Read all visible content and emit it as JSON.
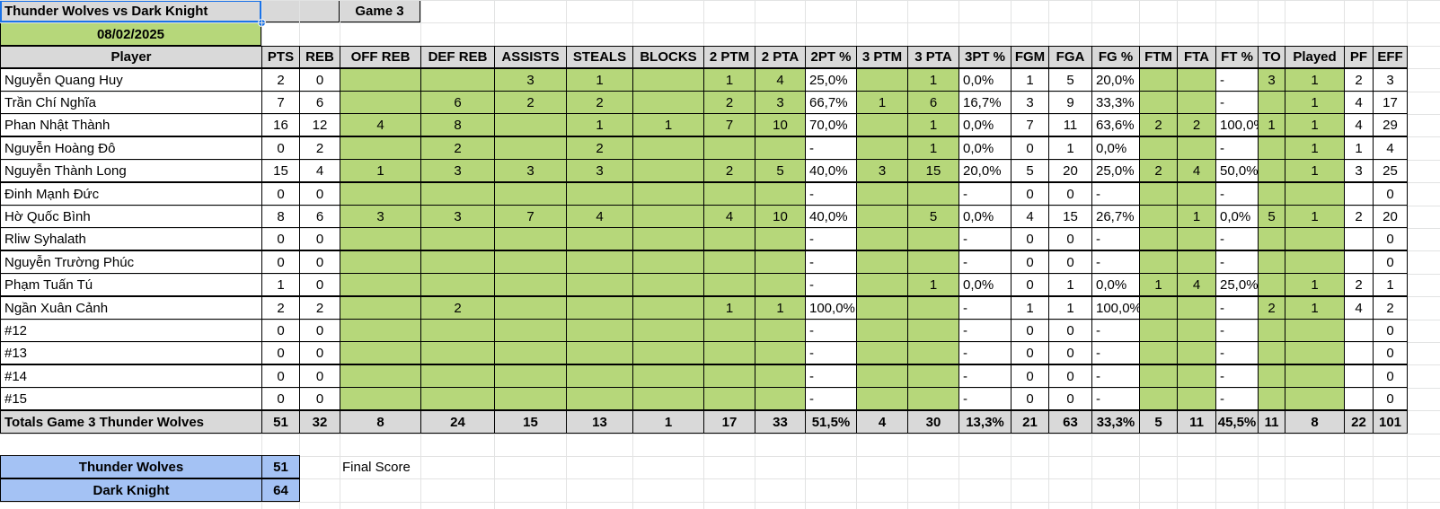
{
  "title": "Thunder Wolves vs Dark Knight",
  "game_label": "Game 3",
  "date": "08/02/2025",
  "headers": [
    "Player",
    "PTS",
    "REB",
    "OFF REB",
    "DEF REB",
    "ASSISTS",
    "STEALS",
    "BLOCKS",
    "2 PTM",
    "2 PTA",
    "2PT %",
    "3 PTM",
    "3 PTA",
    "3PT %",
    "FGM",
    "FGA",
    "FG %",
    "FTM",
    "FTA",
    "FT %",
    "TO",
    "Played",
    "PF",
    "EFF"
  ],
  "rows": [
    [
      "Nguyễn Quang Huy",
      "2",
      "0",
      "",
      "",
      "3",
      "1",
      "",
      "1",
      "4",
      "25,0%",
      "",
      "1",
      "0,0%",
      "1",
      "5",
      "20,0%",
      "",
      "",
      "-",
      "3",
      "1",
      "2",
      "3"
    ],
    [
      "Trần Chí Nghĩa",
      "7",
      "6",
      "",
      "6",
      "2",
      "2",
      "",
      "2",
      "3",
      "66,7%",
      "1",
      "6",
      "16,7%",
      "3",
      "9",
      "33,3%",
      "",
      "",
      "-",
      "",
      "1",
      "4",
      "17"
    ],
    [
      "Phan Nhật Thành",
      "16",
      "12",
      "4",
      "8",
      "",
      "1",
      "1",
      "7",
      "10",
      "70,0%",
      "",
      "1",
      "0,0%",
      "7",
      "11",
      "63,6%",
      "2",
      "2",
      "100,0%",
      "1",
      "1",
      "4",
      "29"
    ],
    [
      "Nguyễn Hoàng Đô",
      "0",
      "2",
      "",
      "2",
      "",
      "2",
      "",
      "",
      "",
      "-",
      "",
      "1",
      "0,0%",
      "0",
      "1",
      "0,0%",
      "",
      "",
      "-",
      "",
      "1",
      "1",
      "4"
    ],
    [
      "Nguyễn Thành Long",
      "15",
      "4",
      "1",
      "3",
      "3",
      "3",
      "",
      "2",
      "5",
      "40,0%",
      "3",
      "15",
      "20,0%",
      "5",
      "20",
      "25,0%",
      "2",
      "4",
      "50,0%",
      "",
      "1",
      "3",
      "25"
    ],
    [
      "Đinh Mạnh Đức",
      "0",
      "0",
      "",
      "",
      "",
      "",
      "",
      "",
      "",
      "-",
      "",
      "",
      "-",
      "0",
      "0",
      "-",
      "",
      "",
      "-",
      "",
      "",
      "",
      "0"
    ],
    [
      "Hờ Quốc Bình",
      "8",
      "6",
      "3",
      "3",
      "7",
      "4",
      "",
      "4",
      "10",
      "40,0%",
      "",
      "5",
      "0,0%",
      "4",
      "15",
      "26,7%",
      "",
      "1",
      "0,0%",
      "5",
      "1",
      "2",
      "20"
    ],
    [
      "Rliw Syhalath",
      "0",
      "0",
      "",
      "",
      "",
      "",
      "",
      "",
      "",
      "-",
      "",
      "",
      "-",
      "0",
      "0",
      "-",
      "",
      "",
      "-",
      "",
      "",
      "",
      "0"
    ],
    [
      "Nguyễn Trường Phúc",
      "0",
      "0",
      "",
      "",
      "",
      "",
      "",
      "",
      "",
      "-",
      "",
      "",
      "-",
      "0",
      "0",
      "-",
      "",
      "",
      "-",
      "",
      "",
      "",
      "0"
    ],
    [
      "Phạm Tuấn Tú",
      "1",
      "0",
      "",
      "",
      "",
      "",
      "",
      "",
      "",
      "-",
      "",
      "1",
      "0,0%",
      "0",
      "1",
      "0,0%",
      "1",
      "4",
      "25,0%",
      "",
      "1",
      "2",
      "1"
    ],
    [
      "Ngần Xuân Cảnh",
      "2",
      "2",
      "",
      "2",
      "",
      "",
      "",
      "1",
      "1",
      "100,0%",
      "",
      "",
      "-",
      "1",
      "1",
      "100,0%",
      "",
      "",
      "-",
      "2",
      "1",
      "4",
      "2"
    ],
    [
      "#12",
      "0",
      "0",
      "",
      "",
      "",
      "",
      "",
      "",
      "",
      "-",
      "",
      "",
      "-",
      "0",
      "0",
      "-",
      "",
      "",
      "-",
      "",
      "",
      "",
      "0"
    ],
    [
      "#13",
      "0",
      "0",
      "",
      "",
      "",
      "",
      "",
      "",
      "",
      "-",
      "",
      "",
      "-",
      "0",
      "0",
      "-",
      "",
      "",
      "-",
      "",
      "",
      "",
      "0"
    ],
    [
      "#14",
      "0",
      "0",
      "",
      "",
      "",
      "",
      "",
      "",
      "",
      "-",
      "",
      "",
      "-",
      "0",
      "0",
      "-",
      "",
      "",
      "-",
      "",
      "",
      "",
      "0"
    ],
    [
      "#15",
      "0",
      "0",
      "",
      "",
      "",
      "",
      "",
      "",
      "",
      "-",
      "",
      "",
      "-",
      "0",
      "0",
      "-",
      "",
      "",
      "-",
      "",
      "",
      "",
      "0"
    ]
  ],
  "totals": [
    "Totals Game 3 Thunder Wolves",
    "51",
    "32",
    "8",
    "24",
    "15",
    "13",
    "1",
    "17",
    "33",
    "51,5%",
    "4",
    "30",
    "13,3%",
    "21",
    "63",
    "33,3%",
    "5",
    "11",
    "45,5%",
    "11",
    "8",
    "22",
    "101"
  ],
  "score": [
    {
      "team": "Thunder Wolves",
      "points": "51"
    },
    {
      "team": "Dark Knight",
      "points": "64"
    }
  ],
  "final_score_label": "Final Score",
  "colors": {
    "header": "#d9d9d9",
    "input_cell": "#b6d77a",
    "score_team": "#a4c2f4",
    "selection": "#1a73e8",
    "gridline": "#e2e3e3"
  }
}
